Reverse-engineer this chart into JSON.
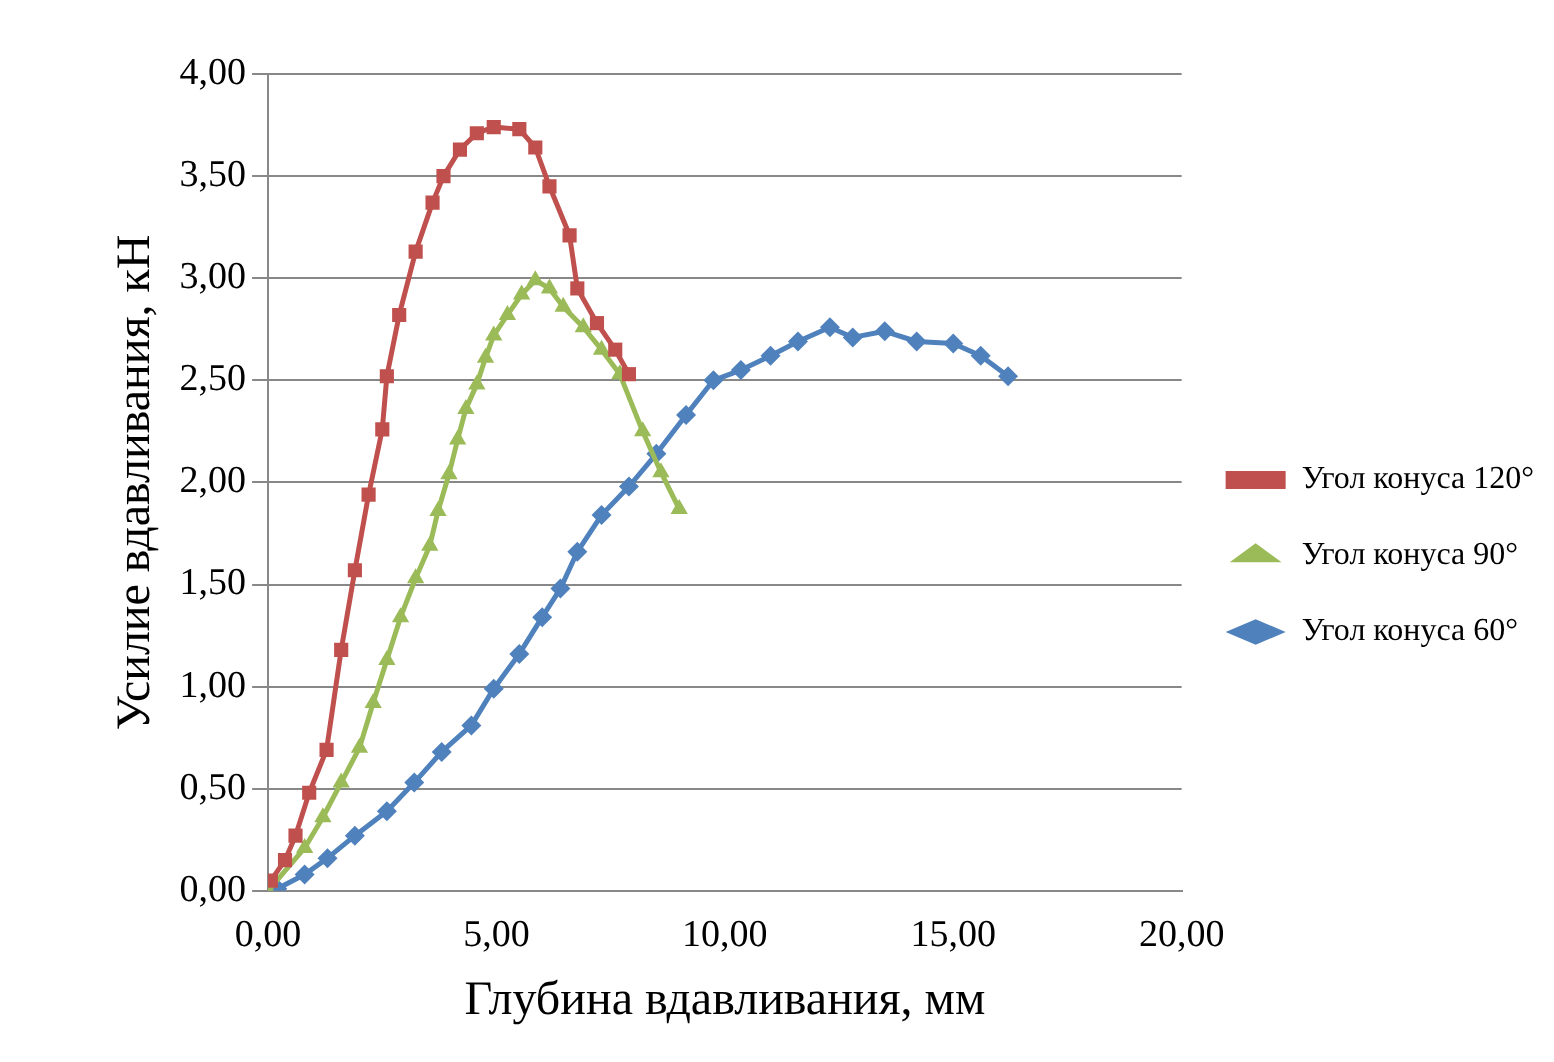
{
  "chart_data": {
    "type": "line",
    "xlabel": "Глубина вдавливания, мм",
    "ylabel": "Усилие вдавливания, кН",
    "xlim": [
      0,
      20
    ],
    "ylim": [
      0,
      4
    ],
    "xticks": [
      {
        "value": 0,
        "label": "0,00"
      },
      {
        "value": 5,
        "label": "5,00"
      },
      {
        "value": 10,
        "label": "10,00"
      },
      {
        "value": 15,
        "label": "15,00"
      },
      {
        "value": 20,
        "label": "20,00"
      }
    ],
    "yticks": [
      {
        "value": 0,
        "label": "0,00"
      },
      {
        "value": 0.5,
        "label": "0,50"
      },
      {
        "value": 1,
        "label": "1,00"
      },
      {
        "value": 1.5,
        "label": "1,50"
      },
      {
        "value": 2,
        "label": "2,00"
      },
      {
        "value": 2.5,
        "label": "2,50"
      },
      {
        "value": 3,
        "label": "3,00"
      },
      {
        "value": 3.5,
        "label": "3,50"
      },
      {
        "value": 4,
        "label": "4,00"
      }
    ],
    "grid": "y",
    "legend": "right",
    "line_style": "solid",
    "series": [
      {
        "name": "Угол конуса 120°",
        "color": "#c0504d",
        "marker": "square",
        "x": [
          0.06,
          0.37,
          0.6,
          0.9,
          1.28,
          1.6,
          1.9,
          2.2,
          2.5,
          2.6,
          2.87,
          3.23,
          3.6,
          3.84,
          4.2,
          4.57,
          4.94,
          5.5,
          5.85,
          6.16,
          6.6,
          6.77,
          7.2,
          7.6,
          7.9
        ],
        "values": [
          0.05,
          0.15,
          0.27,
          0.48,
          0.69,
          1.18,
          1.57,
          1.94,
          2.26,
          2.52,
          2.82,
          3.13,
          3.37,
          3.5,
          3.63,
          3.71,
          3.74,
          3.73,
          3.64,
          3.45,
          3.21,
          2.95,
          2.78,
          2.65,
          2.53
        ]
      },
      {
        "name": "Угол конуса 90°",
        "color": "#9bbb59",
        "marker": "triangle",
        "x": [
          0,
          0.8,
          1.2,
          1.6,
          2.0,
          2.3,
          2.6,
          2.9,
          3.23,
          3.54,
          3.72,
          3.96,
          4.15,
          4.33,
          4.57,
          4.76,
          4.94,
          5.24,
          5.55,
          5.85,
          6.16,
          6.46,
          6.9,
          7.3,
          7.7,
          8.2,
          8.6,
          9.0
        ],
        "values": [
          0,
          0.21,
          0.36,
          0.53,
          0.7,
          0.92,
          1.13,
          1.34,
          1.53,
          1.69,
          1.86,
          2.04,
          2.21,
          2.36,
          2.48,
          2.61,
          2.72,
          2.82,
          2.92,
          2.99,
          2.95,
          2.86,
          2.76,
          2.65,
          2.53,
          2.25,
          2.05,
          1.87
        ]
      },
      {
        "name": "Угол конуса 60°",
        "color": "#4f81bd",
        "marker": "diamond",
        "x": [
          0.2,
          0.8,
          1.3,
          1.9,
          2.6,
          3.2,
          3.8,
          4.45,
          4.94,
          5.5,
          6.0,
          6.4,
          6.77,
          7.3,
          7.9,
          8.5,
          9.15,
          9.75,
          10.35,
          11.0,
          11.6,
          12.3,
          12.8,
          13.5,
          14.2,
          15.0,
          15.6,
          16.2
        ],
        "values": [
          0.01,
          0.08,
          0.16,
          0.27,
          0.39,
          0.53,
          0.68,
          0.81,
          0.99,
          1.16,
          1.34,
          1.48,
          1.66,
          1.84,
          1.98,
          2.14,
          2.33,
          2.5,
          2.55,
          2.62,
          2.69,
          2.76,
          2.71,
          2.74,
          2.69,
          2.68,
          2.62,
          2.52
        ]
      }
    ]
  }
}
